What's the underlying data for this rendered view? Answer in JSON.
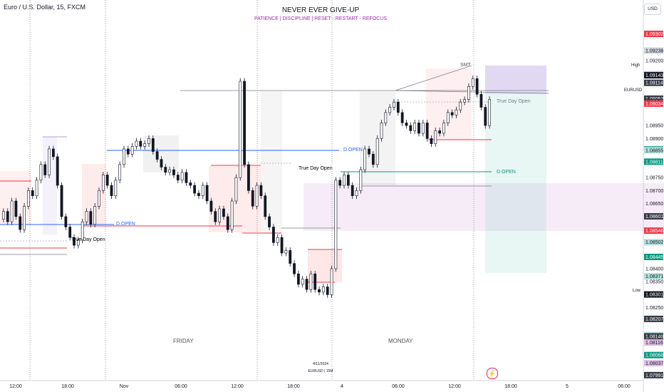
{
  "header": {
    "symbol_title": "Euro / U.S. Dollar, 15, FXCM",
    "headline": "NEVER EVER GIVE-UP",
    "subline": "PATIENCE  |  DISCIPLINE  |  RESET - RESTART - REFOCUS",
    "currency_button": "USD"
  },
  "day_labels": {
    "friday": "FRIDAY",
    "monday": "MONDAY"
  },
  "date_note": {
    "date": "4/11/2024",
    "symbol": "EURUSD | 15M"
  },
  "annotations": {
    "true_day_open": "True Day Open",
    "d_open": "D.OPEN",
    "smt": "SMT",
    "high_label": "High",
    "low_label": "Low",
    "symbol_tag": "EURUSD"
  },
  "colors": {
    "up": "#131722",
    "down": "#131722",
    "accent_red": "#f23645",
    "accent_green": "#089981",
    "purple_zone": "#e1bee7",
    "blue_line": "#2962ff",
    "magenta": "#9c27b0"
  },
  "chart_data": {
    "type": "candlestick",
    "title": "Euro / U.S. Dollar, 15, FXCM",
    "ylim": [
      1.0797,
      1.0935
    ],
    "x_ticks": [
      "12:00",
      "18:00",
      "Nov",
      "06:00",
      "12:00",
      "18:00",
      "4",
      "06:00",
      "12:00",
      "18:00",
      "5",
      "06:00"
    ],
    "y_ticks": [
      "1.09200",
      "1.08950",
      "1.08900",
      "1.08750",
      "1.08700",
      "1.08650",
      "1.08400",
      "1.08350",
      "1.08250"
    ],
    "price_tags": [
      {
        "value": "1.09302",
        "style": "red"
      },
      {
        "value": "1.09238",
        "style": "gray"
      },
      {
        "value": "1.09147",
        "style": "lavender"
      },
      {
        "value": "1.09143",
        "style": "black",
        "label": "High"
      },
      {
        "value": "1.09114",
        "style": "dark"
      },
      {
        "value": "1.09053",
        "style": "dark",
        "label": "EURUSD"
      },
      {
        "value": "1.09040",
        "style": "dark"
      },
      {
        "value": "1.09034",
        "style": "red"
      },
      {
        "value": "1.08858",
        "style": "green"
      },
      {
        "value": "1.08855",
        "style": "mint"
      },
      {
        "value": "1.08811",
        "style": "green"
      },
      {
        "value": "1.08601",
        "style": "dark"
      },
      {
        "value": "1.08546",
        "style": "red"
      },
      {
        "value": "1.08502",
        "style": "mint"
      },
      {
        "value": "1.08445",
        "style": "green"
      },
      {
        "value": "1.08371",
        "style": "mint"
      },
      {
        "value": "1.08301",
        "style": "black",
        "label": "Low"
      },
      {
        "value": "1.08207",
        "style": "dark"
      },
      {
        "value": "1.08145",
        "style": "mint"
      },
      {
        "value": "1.08140",
        "style": "dark"
      },
      {
        "value": "1.08116",
        "style": "lavender"
      },
      {
        "value": "1.08068",
        "style": "green"
      },
      {
        "value": "1.08037",
        "style": "lavender"
      },
      {
        "value": "1.07991",
        "style": "dark"
      }
    ],
    "series": [
      {
        "type": "ohlc_close_path",
        "points": [
          1.0862,
          1.0858,
          1.0866,
          1.086,
          1.0855,
          1.0864,
          1.087,
          1.0868,
          1.0874,
          1.088,
          1.0876,
          1.0886,
          1.0883,
          1.0872,
          1.086,
          1.0856,
          1.0852,
          1.0849,
          1.0851,
          1.0858,
          1.0862,
          1.0857,
          1.0864,
          1.087,
          1.0876,
          1.0872,
          1.0868,
          1.0874,
          1.088,
          1.0886,
          1.0884,
          1.0887,
          1.0889,
          1.0887,
          1.0888,
          1.089,
          1.0885,
          1.0882,
          1.0879,
          1.0877,
          1.0878,
          1.0876,
          1.0874,
          1.0877,
          1.0873,
          1.0872,
          1.0869,
          1.0868,
          1.0872,
          1.0866,
          1.0862,
          1.0858,
          1.0863,
          1.086,
          1.0855,
          1.0866,
          1.0875,
          1.0912,
          1.088,
          1.087,
          1.0864,
          1.0872,
          1.0868,
          1.086,
          1.0856,
          1.085,
          1.0852,
          1.0846,
          1.0847,
          1.0842,
          1.0838,
          1.0834,
          1.0836,
          1.0832,
          1.0838,
          1.0832,
          1.0831,
          1.0833,
          1.083,
          1.084,
          1.0874,
          1.0872,
          1.0876,
          1.0872,
          1.0868,
          1.087,
          1.0878,
          1.0886,
          1.0884,
          1.088,
          1.089,
          1.0896,
          1.09,
          1.0902,
          1.0904,
          1.09,
          1.0896,
          1.0895,
          1.0893,
          1.0896,
          1.0892,
          1.0896,
          1.089,
          1.0888,
          1.0893,
          1.0892,
          1.0896,
          1.09,
          1.0899,
          1.0901,
          1.0904,
          1.0905,
          1.091,
          1.0913,
          1.0907,
          1.0902,
          1.0895,
          1.0905
        ]
      }
    ]
  }
}
